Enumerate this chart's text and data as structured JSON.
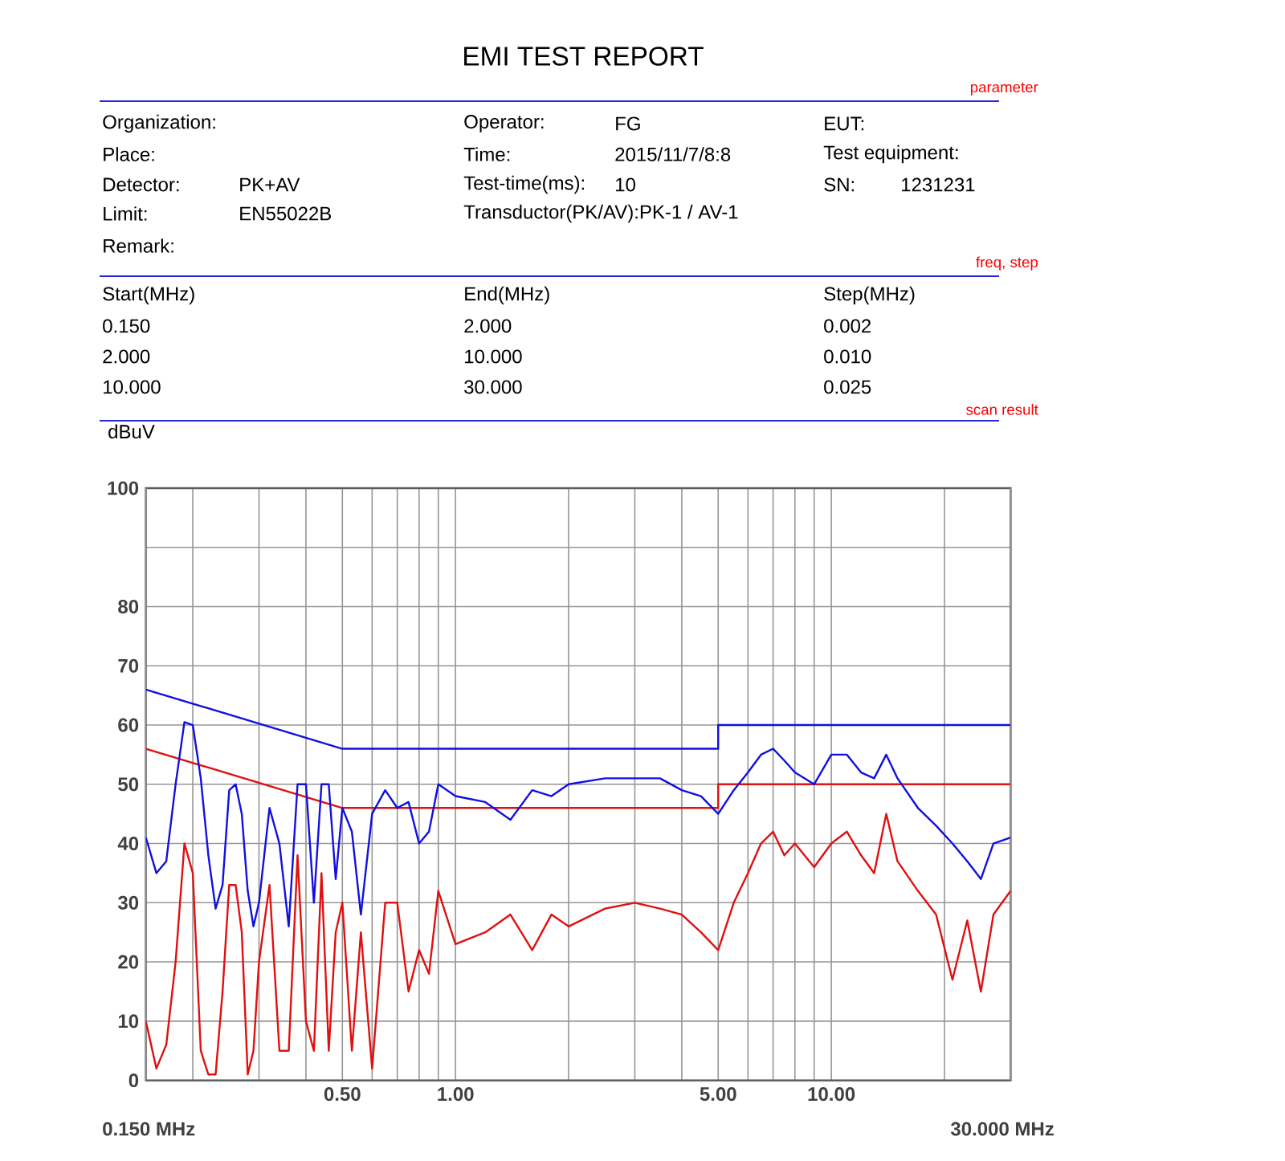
{
  "chart_data": {
    "type": "line",
    "title": "EMI TEST REPORT",
    "ylabel": "dBuV",
    "annotations": [
      "parameter",
      "Organization:",
      "Operator:",
      "FG",
      "EUT:",
      "Place:",
      "Time:",
      "2015/11/7/8:8",
      "Test equipment:",
      "Detector:",
      "PK+AV",
      "Test-time(ms):",
      "10",
      "SN:",
      "1231231",
      "Limit:",
      "EN55022B",
      "Transductor(PK/AV):PK-1  /  AV-1",
      "Remark:",
      "freq, step",
      "Start(MHz)",
      "End(MHz)",
      "Step(MHz)",
      "0.150",
      "2.000",
      "0.002",
      "2.000",
      "10.000",
      "0.010",
      "10.000",
      "30.000",
      "0.025",
      "scan result",
      "0.150 MHz",
      "30.000 MHz"
    ],
    "log": "x",
    "grid": true,
    "marker": "none",
    "line_style": "solid",
    "xlim": [
      0.15,
      30
    ],
    "ylim": [
      0,
      100
    ],
    "xticks": [
      {
        "value": 0.15,
        "label": null
      },
      {
        "value": 0.2,
        "label": null
      },
      {
        "value": 0.3,
        "label": null
      },
      {
        "value": 0.4,
        "label": null
      },
      {
        "value": 0.5,
        "label": "0.50"
      },
      {
        "value": 0.6,
        "label": null
      },
      {
        "value": 0.7,
        "label": null
      },
      {
        "value": 0.8,
        "label": null
      },
      {
        "value": 0.9,
        "label": null
      },
      {
        "value": 1,
        "label": "1.00"
      },
      {
        "value": 2,
        "label": null
      },
      {
        "value": 3,
        "label": null
      },
      {
        "value": 4,
        "label": null
      },
      {
        "value": 5,
        "label": "5.00"
      },
      {
        "value": 6,
        "label": null
      },
      {
        "value": 7,
        "label": null
      },
      {
        "value": 8,
        "label": null
      },
      {
        "value": 9,
        "label": null
      },
      {
        "value": 10,
        "label": "10.00"
      },
      {
        "value": 20,
        "label": null
      },
      {
        "value": 30,
        "label": null
      }
    ],
    "yticks": [
      0,
      10,
      20,
      30,
      40,
      50,
      60,
      70,
      80,
      {
        "value": 90,
        "label": null
      },
      100
    ],
    "series": [
      {
        "color": "#1010e0",
        "x": [
          0.15,
          0.5,
          5,
          5,
          30
        ],
        "values": [
          66,
          56,
          56,
          60,
          60
        ]
      },
      {
        "color": "#e01010",
        "x": [
          0.15,
          0.5,
          5,
          5,
          30
        ],
        "values": [
          56,
          46,
          46,
          50,
          50
        ]
      },
      {
        "color": "#1010e0",
        "x": [
          0.15,
          0.16,
          0.17,
          0.18,
          0.19,
          0.2,
          0.21,
          0.22,
          0.23,
          0.24,
          0.25,
          0.26,
          0.27,
          0.28,
          0.29,
          0.3,
          0.32,
          0.34,
          0.36,
          0.38,
          0.4,
          0.42,
          0.44,
          0.46,
          0.48,
          0.5,
          0.53,
          0.56,
          0.6,
          0.65,
          0.7,
          0.75,
          0.8,
          0.85,
          0.9,
          1.0,
          1.2,
          1.4,
          1.6,
          1.8,
          2,
          2.5,
          3,
          3.5,
          4,
          4.5,
          5,
          5.5,
          6,
          6.5,
          7,
          7.5,
          8,
          9,
          10,
          11,
          12,
          13,
          14,
          15,
          17,
          19,
          21,
          23,
          25,
          27,
          30
        ],
        "values": [
          41,
          35,
          37,
          50,
          60.5,
          60,
          51,
          38,
          29,
          33,
          49,
          50,
          45,
          32,
          26,
          30,
          46,
          40,
          26,
          50,
          50,
          30,
          50,
          50,
          34,
          46,
          42,
          28,
          45,
          49,
          46,
          47,
          40,
          42,
          50,
          48,
          47,
          44,
          49,
          48,
          50,
          51,
          51,
          51,
          49,
          48,
          45,
          49,
          52,
          55,
          56,
          54,
          52,
          50,
          55,
          55,
          52,
          51,
          55,
          51,
          46,
          43,
          40,
          37,
          34,
          40,
          41
        ]
      },
      {
        "color": "#e01010",
        "x": [
          0.15,
          0.16,
          0.17,
          0.18,
          0.19,
          0.2,
          0.21,
          0.22,
          0.23,
          0.24,
          0.25,
          0.26,
          0.27,
          0.28,
          0.29,
          0.3,
          0.32,
          0.34,
          0.36,
          0.38,
          0.4,
          0.42,
          0.44,
          0.46,
          0.48,
          0.5,
          0.53,
          0.56,
          0.6,
          0.65,
          0.7,
          0.75,
          0.8,
          0.85,
          0.9,
          1.0,
          1.2,
          1.4,
          1.6,
          1.8,
          2,
          2.5,
          3,
          3.5,
          4,
          4.5,
          5,
          5.5,
          6,
          6.5,
          7,
          7.5,
          8,
          9,
          10,
          11,
          12,
          13,
          14,
          15,
          17,
          19,
          21,
          23,
          25,
          27,
          30
        ],
        "values": [
          10,
          2,
          6,
          20,
          40,
          35,
          5,
          1,
          1,
          15,
          33,
          33,
          25,
          1,
          5,
          20,
          33,
          5,
          5,
          38,
          10,
          5,
          35,
          5,
          25,
          30,
          5,
          25,
          2,
          30,
          30,
          15,
          22,
          18,
          32,
          23,
          25,
          28,
          22,
          28,
          26,
          29,
          30,
          29,
          28,
          25,
          22,
          30,
          35,
          40,
          42,
          38,
          40,
          36,
          40,
          42,
          38,
          35,
          45,
          37,
          32,
          28,
          17,
          27,
          15,
          28,
          32
        ]
      }
    ]
  }
}
